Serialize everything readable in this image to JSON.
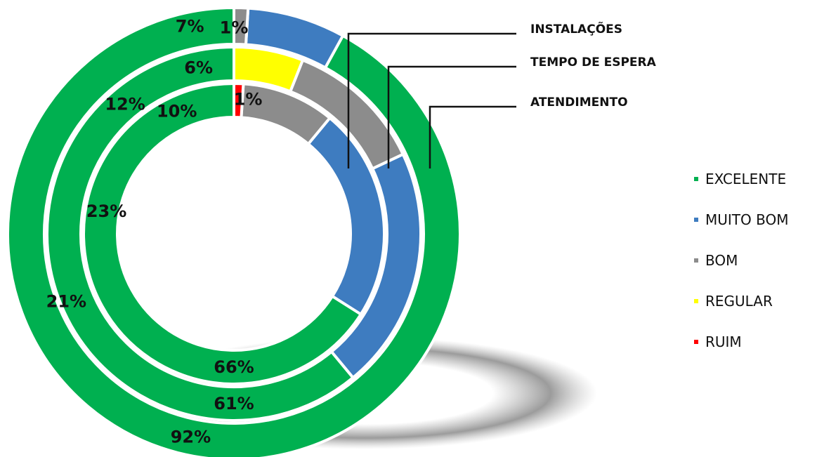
{
  "chart_data": {
    "type": "doughnut",
    "rings": [
      {
        "name": "INSTALAÇÕES",
        "slices": [
          {
            "category": "EXCELENTE",
            "value": 92,
            "label": "92%"
          },
          {
            "category": "MUITO BOM",
            "value": 7,
            "label": "7%"
          },
          {
            "category": "BOM",
            "value": 1,
            "label": "1%"
          }
        ]
      },
      {
        "name": "TEMPO DE ESPERA",
        "slices": [
          {
            "category": "EXCELENTE",
            "value": 61,
            "label": "61%"
          },
          {
            "category": "MUITO BOM",
            "value": 21,
            "label": "21%"
          },
          {
            "category": "BOM",
            "value": 12,
            "label": "12%"
          },
          {
            "category": "REGULAR",
            "value": 6,
            "label": "6%"
          }
        ]
      },
      {
        "name": "ATENDIMENTO",
        "slices": [
          {
            "category": "EXCELENTE",
            "value": 66,
            "label": "66%"
          },
          {
            "category": "MUITO BOM",
            "value": 23,
            "label": "23%"
          },
          {
            "category": "BOM",
            "value": 10,
            "label": "10%"
          },
          {
            "category": "RUIM",
            "value": 1,
            "label": "1%"
          }
        ]
      }
    ],
    "legend": {
      "placement": "right",
      "entries": [
        {
          "label": "EXCELENTE",
          "color": "#00B050"
        },
        {
          "label": "MUITO BOM",
          "color": "#3E7CC0"
        },
        {
          "label": "BOM",
          "color": "#8C8C8C"
        },
        {
          "label": "REGULAR",
          "color": "#FFFF00"
        },
        {
          "label": "RUIM",
          "color": "#FF0000"
        }
      ]
    }
  }
}
